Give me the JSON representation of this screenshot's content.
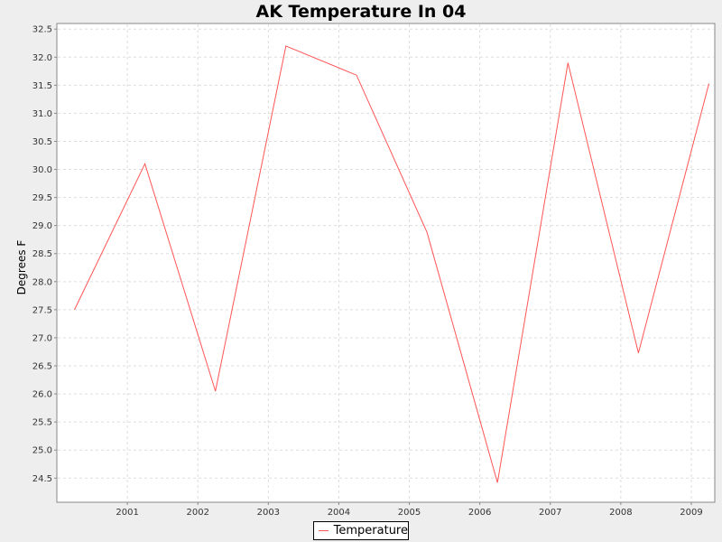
{
  "chart_data": {
    "type": "line",
    "title": "AK Temperature In 04",
    "xlabel": "",
    "ylabel": "Degrees F",
    "x_tick_labels": [
      "2001",
      "2002",
      "2003",
      "2004",
      "2005",
      "2006",
      "2007",
      "2008",
      "2009"
    ],
    "y_tick_labels": [
      "24.5",
      "25.0",
      "25.5",
      "26.0",
      "26.5",
      "27.0",
      "27.5",
      "28.0",
      "28.5",
      "29.0",
      "29.5",
      "30.0",
      "30.5",
      "31.0",
      "31.5",
      "32.0",
      "32.5"
    ],
    "ylim": [
      24.07,
      32.6
    ],
    "xlim": [
      "2000-01-01",
      "2009-05-01"
    ],
    "grid": true,
    "legend_position": "bottom",
    "series": [
      {
        "name": "Temperature",
        "color": "#ff5555",
        "points": [
          {
            "x": "2000-04",
            "y": 27.5
          },
          {
            "x": "2001-04",
            "y": 30.1
          },
          {
            "x": "2002-04",
            "y": 26.05
          },
          {
            "x": "2003-04",
            "y": 32.2
          },
          {
            "x": "2004-04",
            "y": 31.68
          },
          {
            "x": "2005-04",
            "y": 28.88
          },
          {
            "x": "2006-04",
            "y": 24.42
          },
          {
            "x": "2007-04",
            "y": 31.9
          },
          {
            "x": "2008-04",
            "y": 26.73
          },
          {
            "x": "2009-04",
            "y": 31.53
          }
        ]
      }
    ]
  }
}
